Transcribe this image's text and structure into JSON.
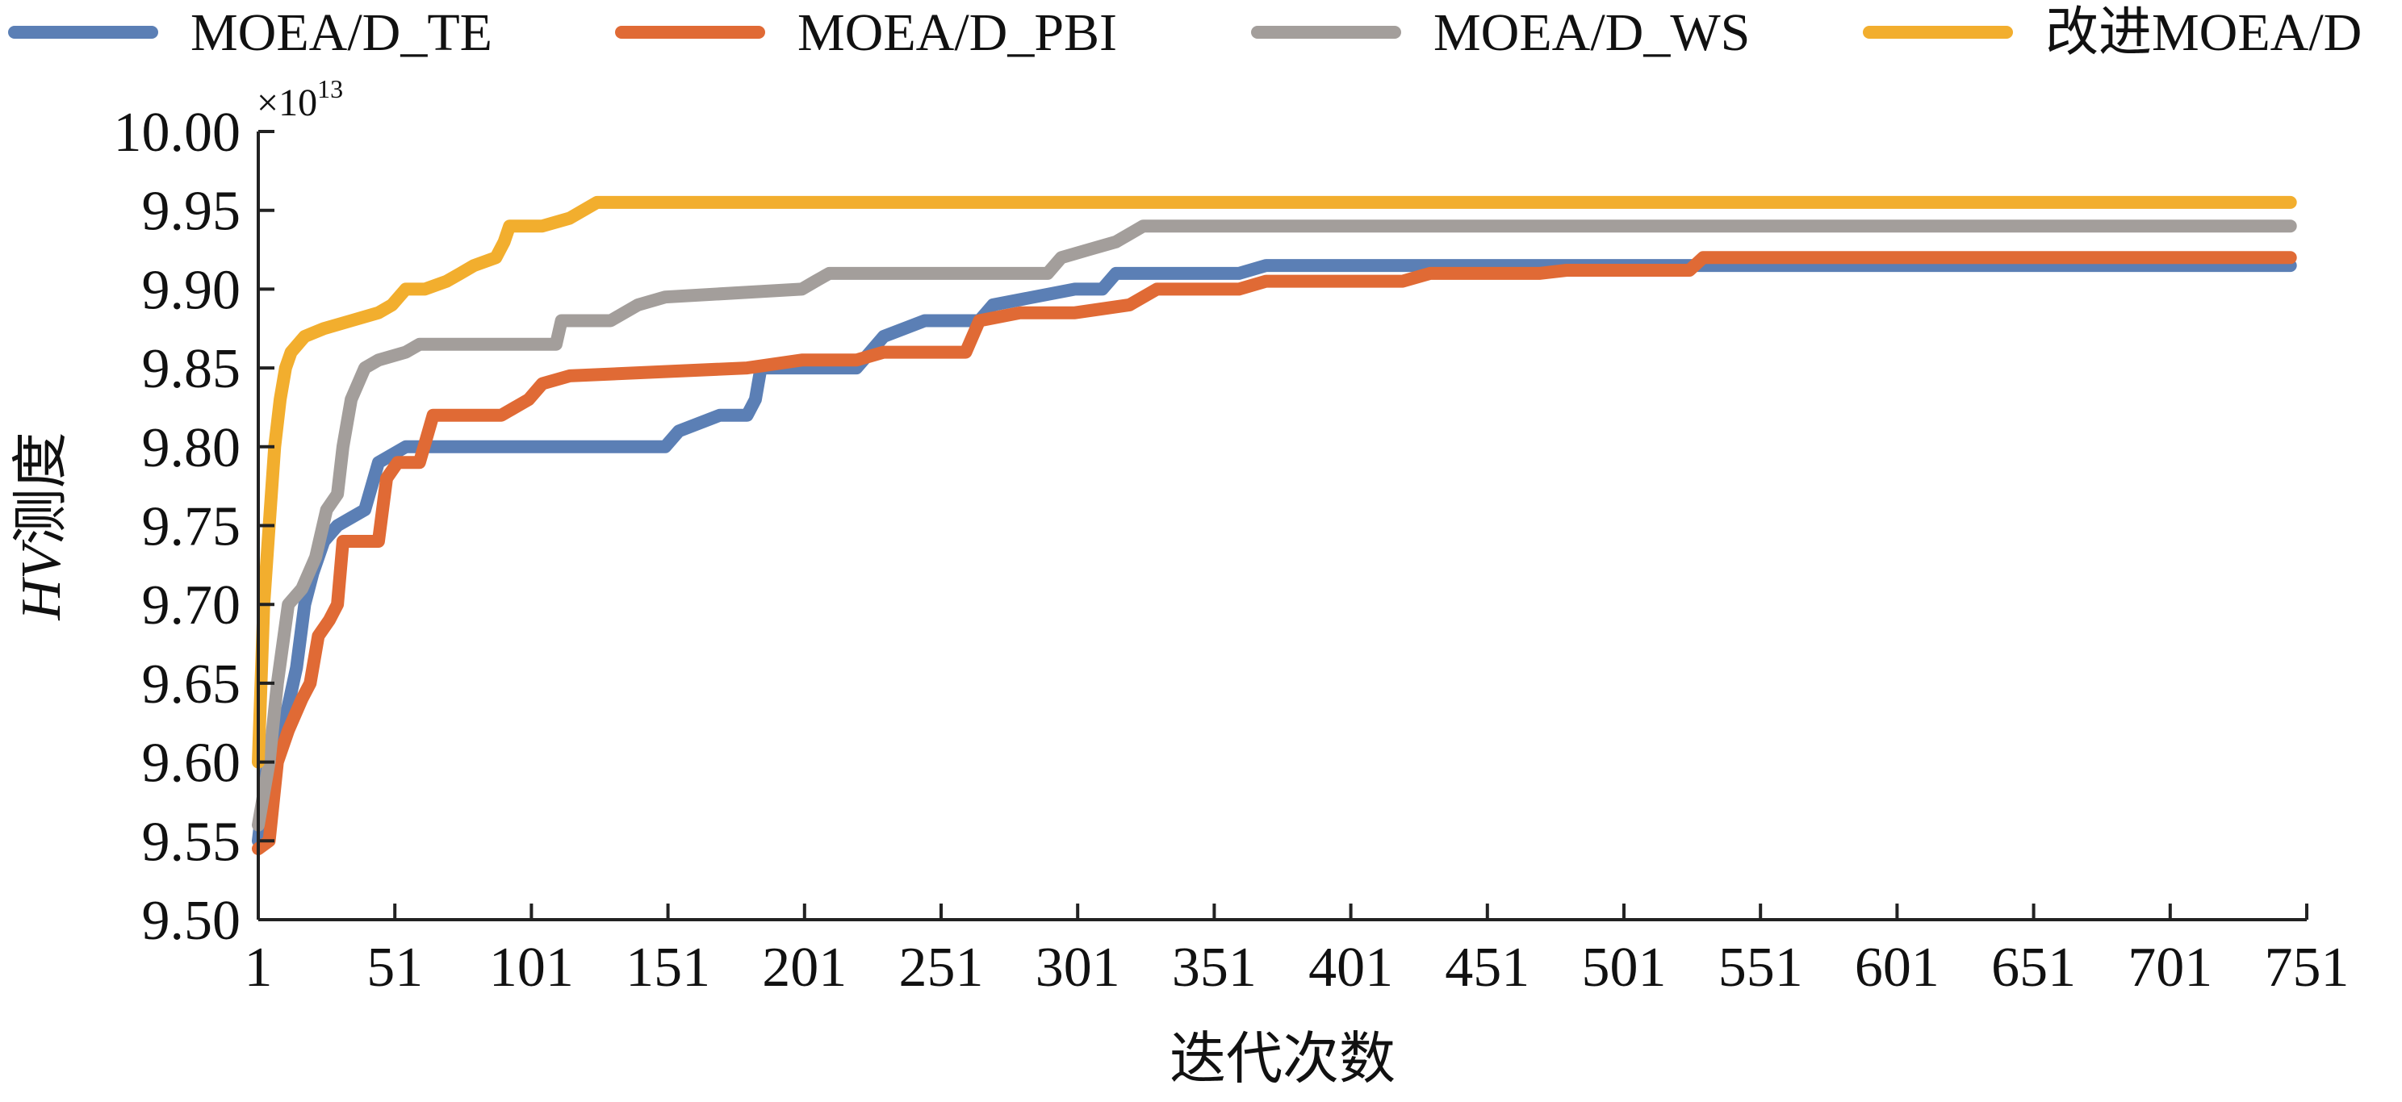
{
  "chart_data": {
    "type": "line",
    "title": "",
    "xlabel": "迭代次数",
    "ylabel_prefix": "HV",
    "ylabel_suffix": "测度",
    "y_multiplier": {
      "base": "×10",
      "exp": "13"
    },
    "xlim": [
      1,
      751
    ],
    "ylim": [
      9.5,
      10.0
    ],
    "x_ticks": [
      1,
      51,
      101,
      151,
      201,
      251,
      301,
      351,
      401,
      451,
      501,
      551,
      601,
      651,
      701,
      751
    ],
    "y_ticks": [
      "9.50",
      "9.55",
      "9.60",
      "9.65",
      "9.70",
      "9.75",
      "9.80",
      "9.85",
      "9.90",
      "9.95",
      "10.00"
    ],
    "grid": false,
    "legend_position": "top",
    "series": [
      {
        "name": "MOEA/D_TE",
        "color": "#5B7FB5",
        "points": [
          [
            1,
            9.55
          ],
          [
            3,
            9.58
          ],
          [
            5,
            9.61
          ],
          [
            10,
            9.62
          ],
          [
            15,
            9.66
          ],
          [
            18,
            9.7
          ],
          [
            21,
            9.72
          ],
          [
            25,
            9.74
          ],
          [
            30,
            9.75
          ],
          [
            40,
            9.76
          ],
          [
            45,
            9.79
          ],
          [
            55,
            9.8
          ],
          [
            70,
            9.8
          ],
          [
            90,
            9.8
          ],
          [
            100,
            9.8
          ],
          [
            120,
            9.8
          ],
          [
            150,
            9.8
          ],
          [
            155,
            9.81
          ],
          [
            170,
            9.82
          ],
          [
            180,
            9.82
          ],
          [
            183,
            9.83
          ],
          [
            185,
            9.85
          ],
          [
            220,
            9.85
          ],
          [
            225,
            9.86
          ],
          [
            230,
            9.87
          ],
          [
            245,
            9.88
          ],
          [
            265,
            9.88
          ],
          [
            270,
            9.89
          ],
          [
            300,
            9.9
          ],
          [
            310,
            9.9
          ],
          [
            315,
            9.91
          ],
          [
            360,
            9.91
          ],
          [
            370,
            9.915
          ],
          [
            430,
            9.915
          ],
          [
            530,
            9.915
          ],
          [
            745,
            9.915
          ]
        ]
      },
      {
        "name": "MOEA/D_PBI",
        "color": "#E06A35",
        "points": [
          [
            1,
            9.545
          ],
          [
            5,
            9.55
          ],
          [
            8,
            9.6
          ],
          [
            12,
            9.62
          ],
          [
            17,
            9.64
          ],
          [
            20,
            9.65
          ],
          [
            23,
            9.68
          ],
          [
            27,
            9.69
          ],
          [
            30,
            9.7
          ],
          [
            32,
            9.74
          ],
          [
            45,
            9.74
          ],
          [
            48,
            9.78
          ],
          [
            52,
            9.79
          ],
          [
            60,
            9.79
          ],
          [
            65,
            9.82
          ],
          [
            90,
            9.82
          ],
          [
            100,
            9.83
          ],
          [
            105,
            9.84
          ],
          [
            115,
            9.845
          ],
          [
            180,
            9.85
          ],
          [
            200,
            9.855
          ],
          [
            220,
            9.855
          ],
          [
            230,
            9.86
          ],
          [
            260,
            9.86
          ],
          [
            265,
            9.88
          ],
          [
            280,
            9.885
          ],
          [
            300,
            9.885
          ],
          [
            320,
            9.89
          ],
          [
            330,
            9.9
          ],
          [
            360,
            9.9
          ],
          [
            370,
            9.905
          ],
          [
            420,
            9.905
          ],
          [
            430,
            9.91
          ],
          [
            470,
            9.91
          ],
          [
            480,
            9.912
          ],
          [
            525,
            9.912
          ],
          [
            530,
            9.92
          ],
          [
            745,
            9.92
          ]
        ]
      },
      {
        "name": "MOEA/D_WS",
        "color": "#A39E9B",
        "points": [
          [
            1,
            9.56
          ],
          [
            5,
            9.6
          ],
          [
            8,
            9.65
          ],
          [
            12,
            9.7
          ],
          [
            17,
            9.71
          ],
          [
            22,
            9.73
          ],
          [
            26,
            9.76
          ],
          [
            30,
            9.77
          ],
          [
            32,
            9.8
          ],
          [
            35,
            9.83
          ],
          [
            40,
            9.85
          ],
          [
            45,
            9.855
          ],
          [
            55,
            9.86
          ],
          [
            60,
            9.865
          ],
          [
            110,
            9.865
          ],
          [
            112,
            9.88
          ],
          [
            130,
            9.88
          ],
          [
            140,
            9.89
          ],
          [
            150,
            9.895
          ],
          [
            200,
            9.9
          ],
          [
            205,
            9.905
          ],
          [
            210,
            9.91
          ],
          [
            290,
            9.91
          ],
          [
            295,
            9.92
          ],
          [
            305,
            9.925
          ],
          [
            315,
            9.93
          ],
          [
            325,
            9.94
          ],
          [
            745,
            9.94
          ]
        ]
      },
      {
        "name": "改进MOEA/D",
        "color": "#F2AE2E",
        "points": [
          [
            1,
            9.6
          ],
          [
            3,
            9.7
          ],
          [
            5,
            9.75
          ],
          [
            7,
            9.8
          ],
          [
            9,
            9.83
          ],
          [
            11,
            9.85
          ],
          [
            13,
            9.86
          ],
          [
            18,
            9.87
          ],
          [
            25,
            9.875
          ],
          [
            35,
            9.88
          ],
          [
            45,
            9.885
          ],
          [
            50,
            9.89
          ],
          [
            55,
            9.9
          ],
          [
            62,
            9.9
          ],
          [
            70,
            9.905
          ],
          [
            75,
            9.91
          ],
          [
            80,
            9.915
          ],
          [
            88,
            9.92
          ],
          [
            91,
            9.93
          ],
          [
            93,
            9.94
          ],
          [
            105,
            9.94
          ],
          [
            115,
            9.945
          ],
          [
            125,
            9.955
          ],
          [
            745,
            9.955
          ]
        ]
      }
    ]
  }
}
